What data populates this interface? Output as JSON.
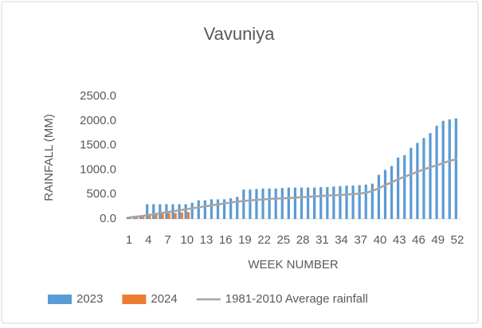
{
  "chart_data": {
    "type": "bar",
    "title": "Vavuniya",
    "x_label": "WEEK NUMBER",
    "y_label": "RAINFALL (MM)",
    "categories": [
      1,
      null,
      null,
      4,
      null,
      null,
      7,
      null,
      null,
      10,
      null,
      null,
      13,
      null,
      null,
      16,
      null,
      null,
      19,
      null,
      null,
      22,
      null,
      null,
      25,
      null,
      null,
      28,
      null,
      null,
      31,
      null,
      null,
      34,
      null,
      null,
      37,
      null,
      null,
      40,
      null,
      null,
      43,
      null,
      null,
      46,
      null,
      null,
      49,
      null,
      null,
      52
    ],
    "series": [
      {
        "name": "2023",
        "type": "bar",
        "color": "#5b9bd5",
        "values": [
          40,
          50,
          60,
          300,
          300,
          300,
          300,
          300,
          300,
          300,
          330,
          380,
          380,
          400,
          400,
          400,
          420,
          450,
          600,
          600,
          610,
          620,
          620,
          620,
          630,
          640,
          640,
          640,
          640,
          640,
          650,
          650,
          660,
          670,
          680,
          680,
          690,
          700,
          720,
          900,
          1000,
          1080,
          1250,
          1300,
          1450,
          1550,
          1650,
          1750,
          1900,
          2000,
          2030,
          2050
        ]
      },
      {
        "name": "2024",
        "type": "bar",
        "color": "#ed7d31",
        "values": [
          20,
          40,
          60,
          80,
          100,
          110,
          120,
          120,
          130,
          140,
          null,
          null,
          null,
          null,
          null,
          null,
          null,
          null,
          null,
          null,
          null,
          null,
          null,
          null,
          null,
          null,
          null,
          null,
          null,
          null,
          null,
          null,
          null,
          null,
          null,
          null,
          null,
          null,
          null,
          null,
          null,
          null,
          null,
          null,
          null,
          null,
          null,
          null,
          null,
          null,
          null,
          null
        ]
      },
      {
        "name": "1981-2010 Average rainfall",
        "type": "line",
        "color": "#a5a5a5",
        "values": [
          30,
          45,
          60,
          80,
          100,
          120,
          140,
          160,
          180,
          200,
          220,
          240,
          260,
          280,
          300,
          320,
          340,
          355,
          370,
          380,
          390,
          400,
          410,
          415,
          420,
          428,
          436,
          444,
          452,
          460,
          468,
          476,
          484,
          492,
          500,
          510,
          520,
          540,
          580,
          640,
          700,
          760,
          820,
          870,
          920,
          970,
          1020,
          1060,
          1100,
          1150,
          1190,
          1220
        ]
      }
    ],
    "ylim": [
      0,
      2500
    ],
    "yticks": [
      {
        "value": 0,
        "label": "0.0"
      },
      {
        "value": 500,
        "label": "500.0"
      },
      {
        "value": 1000,
        "label": "1000.0"
      },
      {
        "value": 1500,
        "label": "1500.0"
      },
      {
        "value": 2000,
        "label": "2000.0"
      },
      {
        "value": 2500,
        "label": "2500.0"
      }
    ],
    "grid": false,
    "legend": "bottom"
  }
}
